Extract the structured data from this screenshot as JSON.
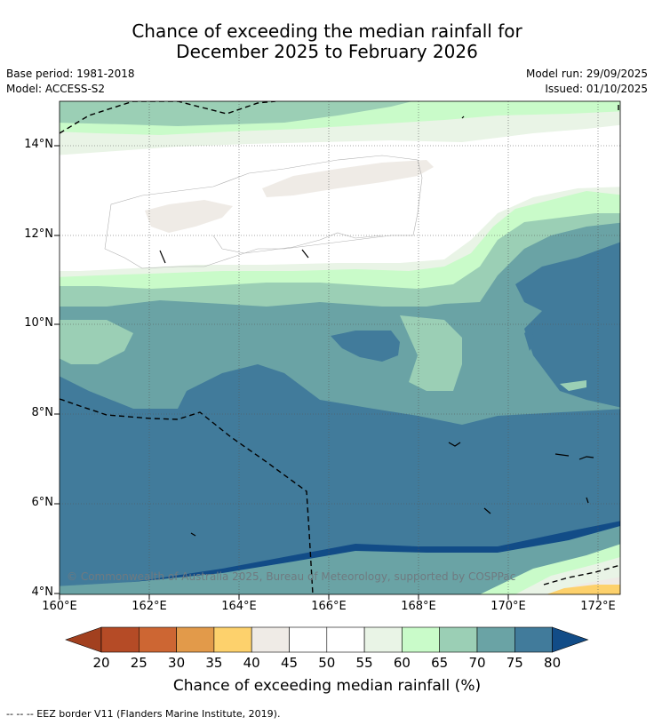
{
  "title": {
    "line1": "Chance of exceeding the median rainfall for",
    "line2": "December 2025 to February 2026"
  },
  "meta": {
    "base_period": "Base period: 1981-2018",
    "model": "Model: ACCESS-S2",
    "model_run": "Model run: 29/09/2025",
    "issued": "Issued: 01/10/2025"
  },
  "map": {
    "lat_labels": [
      "14°N",
      "12°N",
      "10°N",
      "8°N",
      "6°N",
      "4°N"
    ],
    "lon_labels": [
      "160°E",
      "162°E",
      "164°E",
      "166°E",
      "168°E",
      "170°E",
      "172°E"
    ],
    "copyright": "© Commonwealth of Australia 2025, Bureau of Meteorology, supported by COSPPac"
  },
  "colorbar": {
    "labels": [
      "20",
      "25",
      "30",
      "35",
      "40",
      "45",
      "50",
      "55",
      "60",
      "65",
      "70",
      "75",
      "80"
    ],
    "colors": [
      "#a2401f",
      "#b54b26",
      "#cd6633",
      "#e29a4a",
      "#fdd16c",
      "#efebe6",
      "#ffffff",
      "#ffffff",
      "#e9f4e6",
      "#c9fbc9",
      "#9bcfb5",
      "#6aa3a5",
      "#417b9b",
      "#124c87"
    ],
    "title": "Chance of exceeding median rainfall (%)"
  },
  "footnote": "--  --  -- EEZ border V11 (Flanders Marine Institute, 2019)."
}
